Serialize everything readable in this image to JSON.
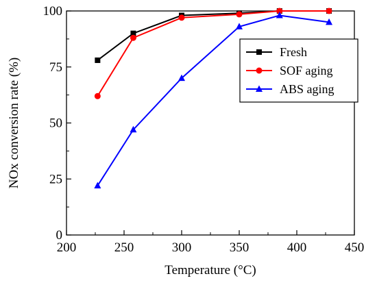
{
  "chart_data": {
    "type": "line",
    "title": "",
    "xlabel": "Temperature (°C)",
    "ylabel": "NOx conversion rate (%)",
    "xlim": [
      200,
      450
    ],
    "ylim": [
      0,
      100
    ],
    "x_ticks": [
      200,
      250,
      300,
      350,
      400,
      450
    ],
    "y_ticks": [
      0,
      25,
      50,
      75,
      100
    ],
    "x_tick_labels": [
      "200",
      "250",
      "300",
      "350",
      "400",
      "450"
    ],
    "y_tick_labels": [
      "0",
      "25",
      "50",
      "75",
      "100"
    ],
    "grid": false,
    "legend_position": "top-right",
    "x": [
      227,
      258,
      300,
      350,
      385,
      428
    ],
    "series": [
      {
        "name": "Fresh",
        "color": "#000000",
        "marker": "square",
        "values": [
          78,
          90,
          98,
          99,
          100,
          100
        ]
      },
      {
        "name": "SOF aging",
        "color": "#ff0000",
        "marker": "circle",
        "values": [
          62,
          88,
          97,
          98.5,
          100,
          100
        ]
      },
      {
        "name": "ABS aging",
        "color": "#0000ff",
        "marker": "triangle",
        "values": [
          22,
          47,
          70,
          93,
          98,
          95
        ]
      }
    ]
  }
}
